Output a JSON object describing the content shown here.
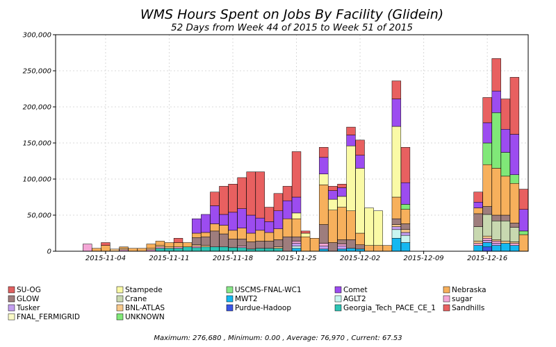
{
  "chart_data": {
    "type": "bar",
    "stacked": true,
    "title": "WMS Hours Spent on Jobs By Facility (Glidein)",
    "subtitle": "52 Days from Week 44 of 2015 to Week 51 of 2015",
    "ylim": [
      0,
      300000
    ],
    "yticks": [
      0,
      50000,
      100000,
      150000,
      200000,
      250000,
      300000
    ],
    "ytick_labels": [
      "0",
      "50,000",
      "100,000",
      "150,000",
      "200,000",
      "250,000",
      "300,000"
    ],
    "x_dates": [
      "2015-10-30",
      "2015-10-31",
      "2015-11-01",
      "2015-11-02",
      "2015-11-03",
      "2015-11-04",
      "2015-11-05",
      "2015-11-06",
      "2015-11-07",
      "2015-11-08",
      "2015-11-09",
      "2015-11-10",
      "2015-11-11",
      "2015-11-12",
      "2015-11-13",
      "2015-11-14",
      "2015-11-15",
      "2015-11-16",
      "2015-11-17",
      "2015-11-18",
      "2015-11-19",
      "2015-11-20",
      "2015-11-21",
      "2015-11-22",
      "2015-11-23",
      "2015-11-24",
      "2015-11-25",
      "2015-11-26",
      "2015-11-27",
      "2015-11-28",
      "2015-11-29",
      "2015-11-30",
      "2015-12-01",
      "2015-12-02",
      "2015-12-03",
      "2015-12-04",
      "2015-12-05",
      "2015-12-06",
      "2015-12-07",
      "2015-12-08",
      "2015-12-09",
      "2015-12-10",
      "2015-12-11",
      "2015-12-12",
      "2015-12-13",
      "2015-12-14",
      "2015-12-15",
      "2015-12-16",
      "2015-12-17",
      "2015-12-18",
      "2015-12-19",
      "2015-12-20"
    ],
    "xtick_labels": [
      {
        "date": "2015-11-04",
        "label": "2015-11-04"
      },
      {
        "date": "2015-11-11",
        "label": "2015-11-11"
      },
      {
        "date": "2015-11-18",
        "label": "2015-11-18"
      },
      {
        "date": "2015-11-25",
        "label": "2015-11-25"
      },
      {
        "date": "2015-12-02",
        "label": "2015-12-02"
      },
      {
        "date": "2015-12-09",
        "label": "2015-12-09"
      },
      {
        "date": "2015-12-16",
        "label": "2015-12-16"
      }
    ],
    "grid": true,
    "legend_position": "bottom",
    "series": [
      {
        "name": "Purdue-Hadoop",
        "color": "#3a55e6",
        "values": [
          0,
          0,
          0,
          0,
          0,
          0,
          0,
          0,
          0,
          0,
          0,
          0,
          0,
          0,
          0,
          0,
          0,
          0,
          0,
          0,
          0,
          0,
          0,
          0,
          0,
          0,
          0,
          0,
          0,
          0,
          0,
          0,
          0,
          0,
          0,
          0,
          0,
          0,
          0,
          0,
          0,
          0,
          0,
          0,
          0,
          0,
          0,
          6000,
          0,
          0,
          0,
          0
        ]
      },
      {
        "name": "MWT2",
        "color": "#14b8f0",
        "values": [
          0,
          0,
          0,
          0,
          0,
          0,
          0,
          0,
          0,
          0,
          0,
          0,
          0,
          0,
          0,
          0,
          0,
          0,
          0,
          0,
          0,
          0,
          0,
          0,
          0,
          0,
          4000,
          0,
          0,
          3000,
          0,
          3000,
          4000,
          3000,
          0,
          0,
          0,
          18000,
          12000,
          0,
          0,
          0,
          0,
          0,
          0,
          0,
          8000,
          6000,
          8000,
          11000,
          8000,
          0
        ]
      },
      {
        "name": "Georgia_Tech_PACE_CE_1",
        "color": "#2cc4b4",
        "values": [
          0,
          0,
          0,
          0,
          0,
          0,
          0,
          0,
          0,
          0,
          0,
          4000,
          4000,
          4000,
          6000,
          5000,
          6000,
          6000,
          6000,
          5000,
          5000,
          3000,
          4000,
          4000,
          4000,
          0,
          0,
          0,
          0,
          0,
          0,
          0,
          0,
          0,
          0,
          0,
          0,
          0,
          0,
          0,
          0,
          0,
          0,
          0,
          0,
          0,
          0,
          0,
          0,
          0,
          0,
          0
        ]
      },
      {
        "name": "AGLT2",
        "color": "#c8f5f0",
        "values": [
          0,
          0,
          0,
          0,
          0,
          0,
          0,
          0,
          0,
          0,
          0,
          0,
          0,
          0,
          0,
          0,
          0,
          0,
          0,
          0,
          0,
          0,
          0,
          0,
          0,
          0,
          3000,
          0,
          0,
          0,
          0,
          0,
          0,
          0,
          0,
          0,
          0,
          12000,
          10000,
          0,
          0,
          0,
          0,
          0,
          0,
          0,
          0,
          0,
          0,
          0,
          0,
          0
        ]
      },
      {
        "name": "Tusker",
        "color": "#c39ef0",
        "values": [
          0,
          0,
          0,
          0,
          0,
          0,
          0,
          0,
          0,
          0,
          0,
          0,
          0,
          0,
          0,
          0,
          0,
          0,
          0,
          0,
          0,
          0,
          0,
          0,
          0,
          0,
          4000,
          0,
          0,
          4000,
          0,
          4000,
          0,
          0,
          0,
          0,
          0,
          4000,
          4000,
          0,
          0,
          0,
          0,
          0,
          0,
          0,
          0,
          3000,
          3000,
          0,
          0,
          0
        ]
      },
      {
        "name": "sugar",
        "color": "#f4a6d6",
        "values": [
          0,
          0,
          0,
          10000,
          0,
          0,
          0,
          2000,
          0,
          0,
          2000,
          2000,
          0,
          2000,
          0,
          2000,
          0,
          0,
          0,
          0,
          2000,
          0,
          0,
          0,
          0,
          0,
          3000,
          0,
          0,
          4000,
          0,
          3000,
          0,
          0,
          0,
          0,
          0,
          0,
          0,
          0,
          0,
          0,
          0,
          0,
          0,
          0,
          3000,
          3000,
          3000,
          0,
          3000,
          0
        ]
      },
      {
        "name": "BNL-ATLAS",
        "color": "#f8c98c",
        "values": [
          0,
          0,
          0,
          0,
          0,
          0,
          3000,
          2000,
          0,
          0,
          2000,
          2000,
          2000,
          0,
          0,
          2000,
          2000,
          0,
          0,
          0,
          0,
          0,
          0,
          0,
          2000,
          0,
          0,
          0,
          0,
          0,
          0,
          0,
          0,
          0,
          0,
          0,
          0,
          3000,
          4000,
          0,
          0,
          0,
          0,
          0,
          0,
          0,
          3000,
          3000,
          2000,
          3000,
          2000,
          0
        ]
      },
      {
        "name": "Crane",
        "color": "#c8d8b0",
        "values": [
          0,
          0,
          0,
          0,
          0,
          0,
          0,
          0,
          0,
          0,
          0,
          0,
          0,
          0,
          0,
          0,
          0,
          0,
          0,
          0,
          0,
          0,
          0,
          0,
          0,
          0,
          0,
          0,
          0,
          0,
          0,
          0,
          0,
          0,
          0,
          0,
          0,
          0,
          0,
          0,
          0,
          0,
          0,
          0,
          0,
          0,
          20000,
          30000,
          26000,
          28000,
          20000,
          0
        ]
      },
      {
        "name": "GLOW",
        "color": "#9e7d7d",
        "values": [
          0,
          0,
          0,
          0,
          0,
          0,
          0,
          0,
          0,
          0,
          0,
          0,
          0,
          0,
          0,
          10000,
          12000,
          22000,
          18000,
          12000,
          10000,
          10000,
          10000,
          10000,
          10000,
          20000,
          6000,
          0,
          0,
          26000,
          12000,
          6000,
          12000,
          6000,
          0,
          0,
          0,
          8000,
          8000,
          0,
          0,
          0,
          0,
          0,
          0,
          0,
          18000,
          11000,
          8000,
          8000,
          6000,
          0
        ]
      },
      {
        "name": "Nebraska",
        "color": "#f7b05c",
        "values": [
          0,
          0,
          0,
          0,
          4000,
          8000,
          0,
          2000,
          4000,
          4000,
          6000,
          6000,
          6000,
          6000,
          6000,
          6000,
          6000,
          10000,
          12000,
          12000,
          15000,
          12000,
          15000,
          12000,
          15000,
          25000,
          25000,
          20000,
          18000,
          55000,
          45000,
          45000,
          40000,
          16000,
          8000,
          8000,
          8000,
          30000,
          20000,
          0,
          0,
          0,
          0,
          0,
          0,
          0,
          8000,
          58000,
          65000,
          54000,
          55000,
          23000
        ]
      },
      {
        "name": "Stampede",
        "color": "#fafaa6",
        "values": [
          0,
          0,
          0,
          0,
          0,
          0,
          0,
          0,
          0,
          0,
          0,
          0,
          0,
          0,
          0,
          0,
          0,
          0,
          0,
          0,
          0,
          0,
          0,
          0,
          0,
          0,
          8000,
          5000,
          0,
          15000,
          15000,
          15000,
          90000,
          90000,
          52000,
          48000,
          0,
          98000,
          0,
          0,
          0,
          0,
          0,
          0,
          0,
          0,
          0,
          0,
          0,
          0,
          0,
          0
        ]
      },
      {
        "name": "UNKNOWN",
        "color": "#80e878",
        "values": [
          0,
          0,
          0,
          0,
          0,
          0,
          0,
          0,
          0,
          0,
          0,
          0,
          0,
          0,
          0,
          0,
          0,
          0,
          0,
          0,
          0,
          0,
          0,
          0,
          0,
          0,
          0,
          0,
          0,
          0,
          0,
          0,
          0,
          0,
          0,
          0,
          0,
          0,
          7000,
          0,
          0,
          0,
          0,
          0,
          0,
          0,
          0,
          30000,
          77000,
          33000,
          12000,
          5000
        ]
      },
      {
        "name": "Comet",
        "color": "#9c4cf0",
        "values": [
          0,
          0,
          0,
          0,
          0,
          0,
          0,
          0,
          0,
          0,
          0,
          0,
          0,
          0,
          0,
          20000,
          25000,
          25000,
          15000,
          25000,
          27000,
          25000,
          17000,
          15000,
          25000,
          25000,
          22000,
          0,
          0,
          23000,
          12000,
          12000,
          15000,
          18000,
          0,
          0,
          0,
          38000,
          30000,
          0,
          0,
          0,
          0,
          0,
          0,
          0,
          8000,
          28000,
          30000,
          32000,
          56000,
          30000
        ]
      },
      {
        "name": "Sandhills",
        "color": "#e86060",
        "values": [
          0,
          0,
          0,
          0,
          0,
          4000,
          0,
          0,
          0,
          0,
          0,
          0,
          0,
          6000,
          0,
          0,
          0,
          19000,
          39000,
          39000,
          43000,
          60000,
          64000,
          20000,
          24000,
          20000,
          63000,
          3000,
          0,
          14000,
          6000,
          5000,
          11000,
          21000,
          0,
          0,
          0,
          25000,
          49000,
          0,
          0,
          0,
          0,
          0,
          0,
          0,
          14000,
          35000,
          45000,
          42000,
          79000,
          28000
        ]
      },
      {
        "name": "USCMS-FNAL-WC1",
        "color": "#88e888",
        "values": [
          0,
          0,
          0,
          0,
          0,
          0,
          0,
          0,
          0,
          0,
          0,
          0,
          0,
          0,
          0,
          0,
          0,
          0,
          0,
          0,
          0,
          0,
          0,
          0,
          0,
          0,
          0,
          0,
          0,
          0,
          0,
          0,
          0,
          0,
          0,
          0,
          0,
          0,
          0,
          0,
          0,
          0,
          0,
          0,
          0,
          0,
          0,
          0,
          0,
          0,
          0,
          0
        ]
      },
      {
        "name": "FNAL_FERMIGRID",
        "color": "#fafac8",
        "values": [
          0,
          0,
          0,
          0,
          0,
          0,
          0,
          0,
          0,
          0,
          0,
          0,
          0,
          0,
          0,
          0,
          0,
          0,
          0,
          0,
          0,
          0,
          0,
          0,
          0,
          0,
          0,
          0,
          0,
          0,
          0,
          0,
          0,
          0,
          0,
          0,
          0,
          0,
          0,
          0,
          0,
          0,
          0,
          0,
          0,
          0,
          0,
          0,
          0,
          0,
          0,
          0
        ]
      },
      {
        "name": "SU-OG",
        "color": "#e06060",
        "values": [
          0,
          0,
          0,
          0,
          0,
          0,
          0,
          0,
          0,
          0,
          0,
          0,
          0,
          0,
          0,
          0,
          0,
          0,
          0,
          0,
          0,
          0,
          0,
          0,
          0,
          0,
          0,
          0,
          0,
          0,
          0,
          0,
          0,
          0,
          0,
          0,
          0,
          0,
          0,
          0,
          0,
          0,
          0,
          0,
          0,
          0,
          0,
          0,
          0,
          0,
          0,
          0
        ]
      }
    ],
    "legend": [
      {
        "label": "SU-OG",
        "color": "#e06060"
      },
      {
        "label": "Stampede",
        "color": "#fafaa6"
      },
      {
        "label": "USCMS-FNAL-WC1",
        "color": "#88e888"
      },
      {
        "label": "Comet",
        "color": "#9c4cf0"
      },
      {
        "label": "Nebraska",
        "color": "#f7b05c"
      },
      {
        "label": "GLOW",
        "color": "#9e7d7d"
      },
      {
        "label": "Crane",
        "color": "#c8d8b0"
      },
      {
        "label": "MWT2",
        "color": "#14b8f0"
      },
      {
        "label": "AGLT2",
        "color": "#c8f5f0"
      },
      {
        "label": "sugar",
        "color": "#f4a6d6"
      },
      {
        "label": "Tusker",
        "color": "#c39ef0"
      },
      {
        "label": "BNL-ATLAS",
        "color": "#f8c98c"
      },
      {
        "label": "Purdue-Hadoop",
        "color": "#3a55e6"
      },
      {
        "label": "Georgia_Tech_PACE_CE_1",
        "color": "#2cc4b4"
      },
      {
        "label": "Sandhills",
        "color": "#e86060"
      },
      {
        "label": "FNAL_FERMIGRID",
        "color": "#fafac8"
      },
      {
        "label": "UNKNOWN",
        "color": "#80e878"
      }
    ],
    "footer": "Maximum: 276,680 , Minimum: 0.00 , Average: 76,970 , Current: 67.53"
  }
}
